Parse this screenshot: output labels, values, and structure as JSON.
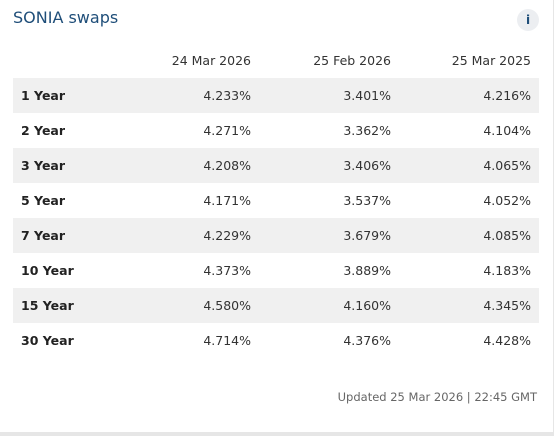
{
  "widget": {
    "title": "SONIA swaps",
    "info_icon": "info-icon",
    "info_glyph": "i"
  },
  "table": {
    "columns": [
      "",
      "24 Mar 2026",
      "25 Feb 2026",
      "25 Mar 2025"
    ],
    "rows": [
      {
        "label": "1 Year",
        "values": [
          "4.233%",
          "3.401%",
          "4.216%"
        ]
      },
      {
        "label": "2 Year",
        "values": [
          "4.271%",
          "3.362%",
          "4.104%"
        ]
      },
      {
        "label": "3 Year",
        "values": [
          "4.208%",
          "3.406%",
          "4.065%"
        ]
      },
      {
        "label": "5 Year",
        "values": [
          "4.171%",
          "3.537%",
          "4.052%"
        ]
      },
      {
        "label": "7 Year",
        "values": [
          "4.229%",
          "3.679%",
          "4.085%"
        ]
      },
      {
        "label": "10 Year",
        "values": [
          "4.373%",
          "3.889%",
          "4.183%"
        ]
      },
      {
        "label": "15 Year",
        "values": [
          "4.580%",
          "4.160%",
          "4.345%"
        ]
      },
      {
        "label": "30 Year",
        "values": [
          "4.714%",
          "4.376%",
          "4.428%"
        ]
      }
    ]
  },
  "footer": {
    "updated": "Updated 25 Mar 2026 | 22:45 GMT"
  },
  "colors": {
    "title": "#1f4e79",
    "row_shade": "#f0f0f0"
  }
}
